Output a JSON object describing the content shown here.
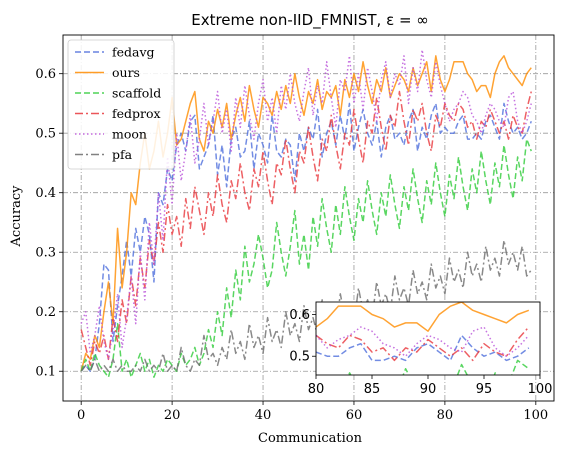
{
  "chart_data": {
    "type": "line",
    "title": "Extreme non-IID_FMNIST, ε = ∞",
    "xlabel": "Communication",
    "ylabel": "Accuracy",
    "xlim": [
      -4,
      104
    ],
    "ylim": [
      0.05,
      0.665
    ],
    "xticks": [
      0,
      20,
      40,
      60,
      80,
      100
    ],
    "yticks": [
      0.1,
      0.2,
      0.3,
      0.4,
      0.5,
      0.6
    ],
    "grid": true,
    "legend_position": "upper-left",
    "series": [
      {
        "name": "fedavg",
        "color": "#4f6fdc",
        "dash": "dashed",
        "values": [
          0.1,
          0.11,
          0.1,
          0.12,
          0.18,
          0.28,
          0.27,
          0.15,
          0.21,
          0.26,
          0.32,
          0.26,
          0.34,
          0.3,
          0.36,
          0.33,
          0.25,
          0.4,
          0.38,
          0.44,
          0.42,
          0.48,
          0.5,
          0.47,
          0.52,
          0.53,
          0.44,
          0.46,
          0.48,
          0.53,
          0.43,
          0.48,
          0.41,
          0.49,
          0.51,
          0.46,
          0.47,
          0.52,
          0.44,
          0.5,
          0.48,
          0.45,
          0.53,
          0.47,
          0.46,
          0.49,
          0.48,
          0.42,
          0.5,
          0.47,
          0.51,
          0.49,
          0.54,
          0.46,
          0.5,
          0.52,
          0.48,
          0.53,
          0.49,
          0.55,
          0.47,
          0.51,
          0.54,
          0.5,
          0.48,
          0.52,
          0.46,
          0.51,
          0.53,
          0.49,
          0.5,
          0.48,
          0.52,
          0.54,
          0.47,
          0.51,
          0.49,
          0.53,
          0.55,
          0.5,
          0.51,
          0.5,
          0.5,
          0.52,
          0.53,
          0.49,
          0.49,
          0.5,
          0.49,
          0.52,
          0.53,
          0.51,
          0.49,
          0.55,
          0.52,
          0.5,
          0.51,
          0.49,
          0.5,
          0.52
        ]
      },
      {
        "name": "ours",
        "color": "#ff8c00",
        "dash": "solid",
        "values": [
          0.1,
          0.13,
          0.12,
          0.16,
          0.14,
          0.2,
          0.25,
          0.18,
          0.34,
          0.24,
          0.3,
          0.4,
          0.38,
          0.45,
          0.5,
          0.44,
          0.47,
          0.52,
          0.46,
          0.5,
          0.56,
          0.48,
          0.49,
          0.52,
          0.55,
          0.57,
          0.49,
          0.47,
          0.52,
          0.5,
          0.54,
          0.51,
          0.55,
          0.49,
          0.53,
          0.56,
          0.52,
          0.58,
          0.54,
          0.51,
          0.56,
          0.55,
          0.53,
          0.57,
          0.54,
          0.58,
          0.55,
          0.6,
          0.56,
          0.53,
          0.57,
          0.55,
          0.59,
          0.54,
          0.57,
          0.56,
          0.58,
          0.53,
          0.59,
          0.56,
          0.6,
          0.57,
          0.62,
          0.58,
          0.55,
          0.59,
          0.57,
          0.61,
          0.56,
          0.58,
          0.6,
          0.59,
          0.57,
          0.61,
          0.58,
          0.6,
          0.62,
          0.57,
          0.63,
          0.59,
          0.57,
          0.59,
          0.62,
          0.62,
          0.62,
          0.6,
          0.59,
          0.57,
          0.58,
          0.58,
          0.56,
          0.6,
          0.62,
          0.63,
          0.61,
          0.6,
          0.59,
          0.58,
          0.6,
          0.61
        ]
      },
      {
        "name": "scaffold",
        "color": "#2fcc3a",
        "dash": "dashed",
        "values": [
          0.1,
          0.12,
          0.1,
          0.13,
          0.11,
          0.1,
          0.09,
          0.12,
          0.18,
          0.1,
          0.12,
          0.09,
          0.11,
          0.13,
          0.1,
          0.12,
          0.09,
          0.11,
          0.1,
          0.12,
          0.11,
          0.1,
          0.13,
          0.11,
          0.12,
          0.14,
          0.11,
          0.13,
          0.17,
          0.14,
          0.2,
          0.16,
          0.24,
          0.19,
          0.27,
          0.22,
          0.31,
          0.25,
          0.28,
          0.33,
          0.29,
          0.24,
          0.27,
          0.35,
          0.3,
          0.26,
          0.31,
          0.37,
          0.28,
          0.33,
          0.27,
          0.36,
          0.31,
          0.39,
          0.34,
          0.3,
          0.38,
          0.33,
          0.41,
          0.36,
          0.32,
          0.39,
          0.35,
          0.42,
          0.37,
          0.33,
          0.4,
          0.36,
          0.43,
          0.38,
          0.34,
          0.41,
          0.37,
          0.44,
          0.39,
          0.35,
          0.42,
          0.38,
          0.45,
          0.4,
          0.36,
          0.43,
          0.39,
          0.46,
          0.41,
          0.37,
          0.44,
          0.4,
          0.47,
          0.42,
          0.38,
          0.45,
          0.41,
          0.48,
          0.43,
          0.39,
          0.46,
          0.42,
          0.49,
          0.47
        ]
      },
      {
        "name": "fedprox",
        "color": "#e8373c",
        "dash": "dashdot",
        "values": [
          0.17,
          0.14,
          0.11,
          0.15,
          0.13,
          0.16,
          0.12,
          0.19,
          0.15,
          0.22,
          0.18,
          0.26,
          0.21,
          0.29,
          0.24,
          0.32,
          0.28,
          0.35,
          0.3,
          0.38,
          0.33,
          0.36,
          0.31,
          0.39,
          0.34,
          0.41,
          0.37,
          0.33,
          0.4,
          0.36,
          0.43,
          0.38,
          0.35,
          0.42,
          0.39,
          0.45,
          0.4,
          0.37,
          0.44,
          0.41,
          0.47,
          0.42,
          0.38,
          0.45,
          0.43,
          0.49,
          0.44,
          0.4,
          0.47,
          0.45,
          0.51,
          0.46,
          0.42,
          0.49,
          0.47,
          0.53,
          0.48,
          0.44,
          0.5,
          0.48,
          0.54,
          0.49,
          0.45,
          0.52,
          0.5,
          0.56,
          0.51,
          0.47,
          0.53,
          0.51,
          0.57,
          0.52,
          0.48,
          0.54,
          0.52,
          0.55,
          0.5,
          0.47,
          0.53,
          0.51,
          0.55,
          0.53,
          0.52,
          0.55,
          0.54,
          0.51,
          0.52,
          0.49,
          0.52,
          0.51,
          0.54,
          0.52,
          0.5,
          0.52,
          0.49,
          0.53,
          0.51,
          0.5,
          0.54,
          0.57
        ]
      },
      {
        "name": "moon",
        "color": "#b84fd8",
        "dash": "dotted",
        "values": [
          0.18,
          0.2,
          0.13,
          0.16,
          0.21,
          0.15,
          0.12,
          0.17,
          0.23,
          0.14,
          0.19,
          0.26,
          0.18,
          0.3,
          0.22,
          0.35,
          0.28,
          0.4,
          0.32,
          0.46,
          0.38,
          0.5,
          0.42,
          0.47,
          0.53,
          0.45,
          0.49,
          0.55,
          0.48,
          0.52,
          0.57,
          0.5,
          0.54,
          0.47,
          0.56,
          0.51,
          0.58,
          0.53,
          0.49,
          0.55,
          0.59,
          0.52,
          0.56,
          0.5,
          0.58,
          0.54,
          0.6,
          0.55,
          0.52,
          0.57,
          0.61,
          0.53,
          0.58,
          0.55,
          0.62,
          0.56,
          0.51,
          0.59,
          0.57,
          0.63,
          0.55,
          0.6,
          0.54,
          0.61,
          0.57,
          0.52,
          0.59,
          0.62,
          0.56,
          0.6,
          0.58,
          0.63,
          0.55,
          0.61,
          0.57,
          0.64,
          0.59,
          0.56,
          0.62,
          0.58,
          0.55,
          0.52,
          0.54,
          0.55,
          0.57,
          0.56,
          0.53,
          0.52,
          0.5,
          0.53,
          0.55,
          0.54,
          0.52,
          0.51,
          0.56,
          0.57,
          0.52,
          0.5,
          0.52,
          0.55
        ]
      },
      {
        "name": "pfa",
        "color": "#6b6b6b",
        "dash": "dashdot",
        "values": [
          0.1,
          0.11,
          0.1,
          0.12,
          0.1,
          0.11,
          0.1,
          0.12,
          0.1,
          0.11,
          0.1,
          0.1,
          0.11,
          0.1,
          0.12,
          0.1,
          0.11,
          0.1,
          0.13,
          0.1,
          0.11,
          0.1,
          0.14,
          0.11,
          0.1,
          0.12,
          0.11,
          0.16,
          0.12,
          0.13,
          0.11,
          0.14,
          0.12,
          0.17,
          0.13,
          0.15,
          0.12,
          0.18,
          0.14,
          0.16,
          0.13,
          0.19,
          0.15,
          0.17,
          0.14,
          0.2,
          0.16,
          0.18,
          0.15,
          0.21,
          0.17,
          0.19,
          0.16,
          0.22,
          0.18,
          0.2,
          0.17,
          0.23,
          0.19,
          0.21,
          0.18,
          0.24,
          0.2,
          0.22,
          0.19,
          0.25,
          0.21,
          0.23,
          0.2,
          0.26,
          0.22,
          0.24,
          0.21,
          0.27,
          0.23,
          0.25,
          0.22,
          0.28,
          0.24,
          0.26,
          0.23,
          0.29,
          0.25,
          0.27,
          0.24,
          0.3,
          0.26,
          0.28,
          0.25,
          0.31,
          0.27,
          0.29,
          0.26,
          0.32,
          0.28,
          0.3,
          0.27,
          0.31,
          0.26,
          0.27
        ]
      }
    ],
    "inset": {
      "xlim": [
        80,
        100
      ],
      "ylim": [
        0.455,
        0.63
      ],
      "xticks": [
        80,
        85,
        90,
        95,
        100
      ],
      "yticks": [
        0.5,
        0.6
      ]
    }
  }
}
